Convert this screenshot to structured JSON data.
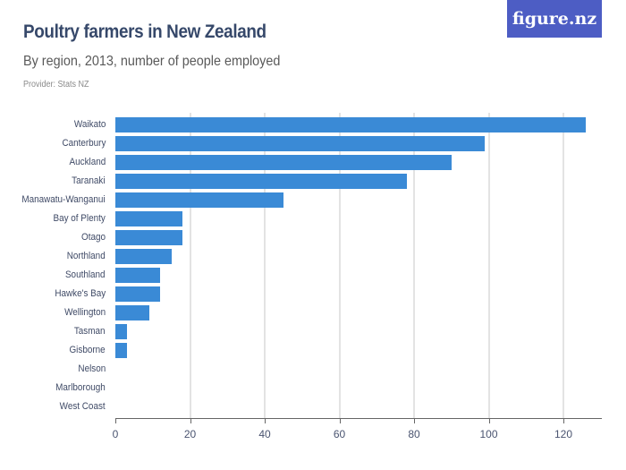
{
  "header": {
    "title": "Poultry farmers in New Zealand",
    "subtitle": "By region, 2013, number of people employed",
    "provider": "Provider: Stats NZ",
    "logo": "figure.nz"
  },
  "colors": {
    "bar": "#3a8ad6",
    "logo_bg": "#4d5dc4",
    "title": "#36486a"
  },
  "chart_data": {
    "type": "bar",
    "orientation": "horizontal",
    "title": "Poultry farmers in New Zealand",
    "subtitle": "By region, 2013, number of people employed",
    "xlabel": "",
    "ylabel": "",
    "xlim": [
      0,
      130
    ],
    "xticks": [
      0,
      20,
      40,
      60,
      80,
      100,
      120
    ],
    "grid": true,
    "categories": [
      "Waikato",
      "Canterbury",
      "Auckland",
      "Taranaki",
      "Manawatu-Wanganui",
      "Bay of Plenty",
      "Otago",
      "Northland",
      "Southland",
      "Hawke's Bay",
      "Wellington",
      "Tasman",
      "Gisborne",
      "Nelson",
      "Marlborough",
      "West Coast"
    ],
    "values": [
      126,
      99,
      90,
      78,
      45,
      18,
      18,
      15,
      12,
      12,
      9,
      3,
      3,
      0,
      0,
      0
    ]
  }
}
